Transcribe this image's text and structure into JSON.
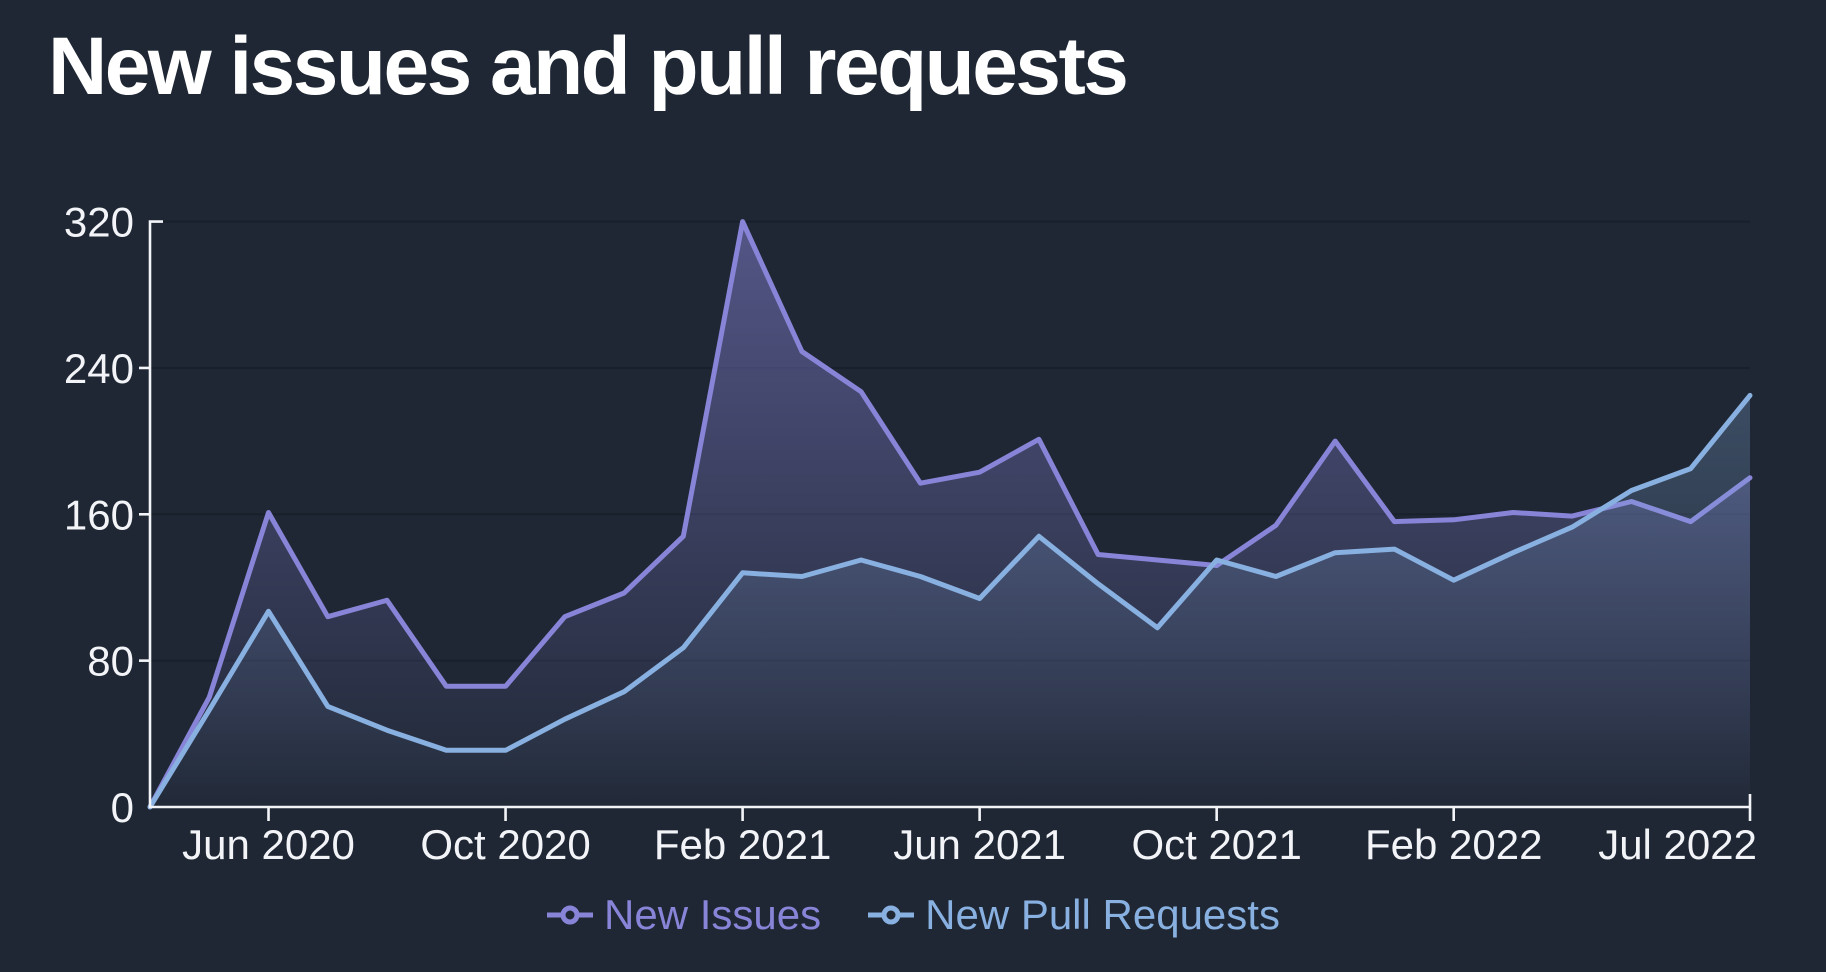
{
  "title": "New issues and pull requests",
  "colors": {
    "background": "#1f2734",
    "axis": "#f2f4f8",
    "grid": "#19202c",
    "issues": "#8884d8",
    "pull_requests": "#88b0e0"
  },
  "chart_data": {
    "type": "area",
    "x": [
      "Apr 2020",
      "May 2020",
      "Jun 2020",
      "Jul 2020",
      "Aug 2020",
      "Sep 2020",
      "Oct 2020",
      "Nov 2020",
      "Dec 2020",
      "Jan 2021",
      "Feb 2021",
      "Mar 2021",
      "Apr 2021",
      "May 2021",
      "Jun 2021",
      "Jul 2021",
      "Aug 2021",
      "Sep 2021",
      "Oct 2021",
      "Nov 2021",
      "Dec 2021",
      "Jan 2022",
      "Feb 2022",
      "Mar 2022",
      "Apr 2022",
      "May 2022",
      "Jun 2022",
      "Jul 2022"
    ],
    "series": [
      {
        "name": "New Issues",
        "color": "#8884d8",
        "values": [
          0,
          60,
          161,
          104,
          113,
          66,
          66,
          104,
          117,
          148,
          320,
          249,
          227,
          177,
          183,
          201,
          138,
          135,
          132,
          154,
          200,
          156,
          157,
          161,
          159,
          167,
          156,
          180
        ]
      },
      {
        "name": "New Pull Requests",
        "color": "#88b0e0",
        "values": [
          0,
          53,
          107,
          55,
          42,
          31,
          31,
          48,
          63,
          87,
          128,
          126,
          135,
          126,
          114,
          148,
          122,
          98,
          135,
          126,
          139,
          141,
          124,
          139,
          153,
          173,
          185,
          225
        ]
      }
    ],
    "title": "New issues and pull requests",
    "xlabel": "",
    "ylabel": "",
    "ylim": [
      0,
      320
    ],
    "yticks": [
      0,
      80,
      160,
      240,
      320
    ],
    "xtick_labels": [
      "Jun 2020",
      "Oct 2020",
      "Feb 2021",
      "Jun 2021",
      "Oct 2021",
      "Feb 2022",
      "Jul 2022"
    ],
    "xtick_indices": [
      2,
      6,
      10,
      14,
      18,
      22,
      27
    ],
    "grid": "horizontal-only",
    "legend_position": "bottom-center"
  },
  "legend": {
    "items": [
      {
        "label": "New Issues",
        "color": "#8884d8"
      },
      {
        "label": "New Pull Requests",
        "color": "#88b0e0"
      }
    ]
  }
}
